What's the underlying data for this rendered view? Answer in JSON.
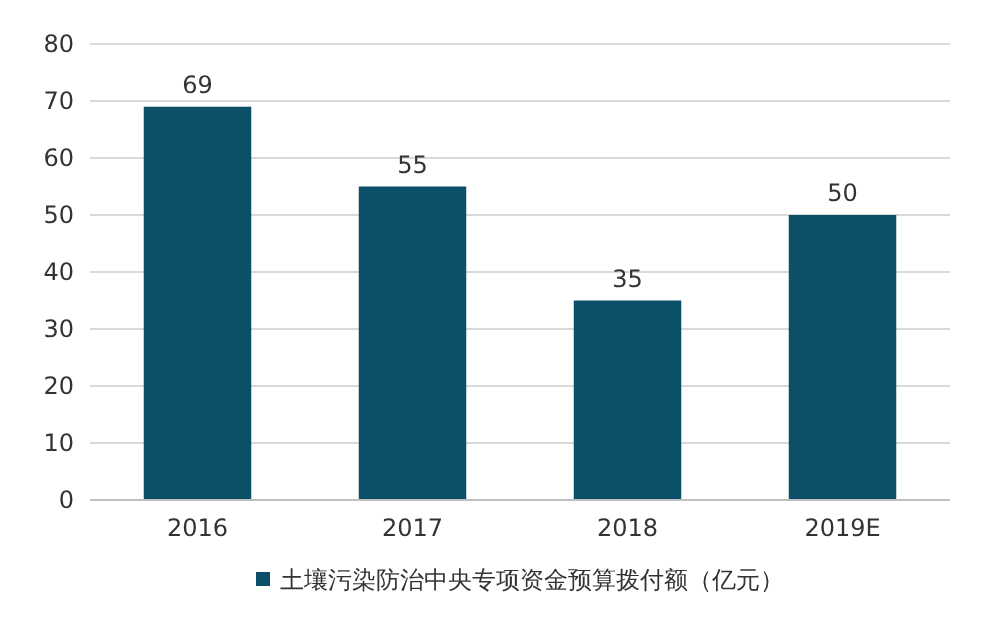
{
  "chart_data": {
    "type": "bar",
    "categories": [
      "2016",
      "2017",
      "2018",
      "2019E"
    ],
    "series": [
      {
        "name": "土壤污染防治中央专项资金预算拨付额（亿元）",
        "color": "#0b5068",
        "values": [
          69,
          55,
          35,
          50
        ]
      }
    ],
    "ylim": [
      0,
      80
    ],
    "yticks": [
      0,
      10,
      20,
      30,
      40,
      50,
      60,
      70,
      80
    ],
    "grid": "y",
    "data_labels": true,
    "legend": "bottom"
  }
}
